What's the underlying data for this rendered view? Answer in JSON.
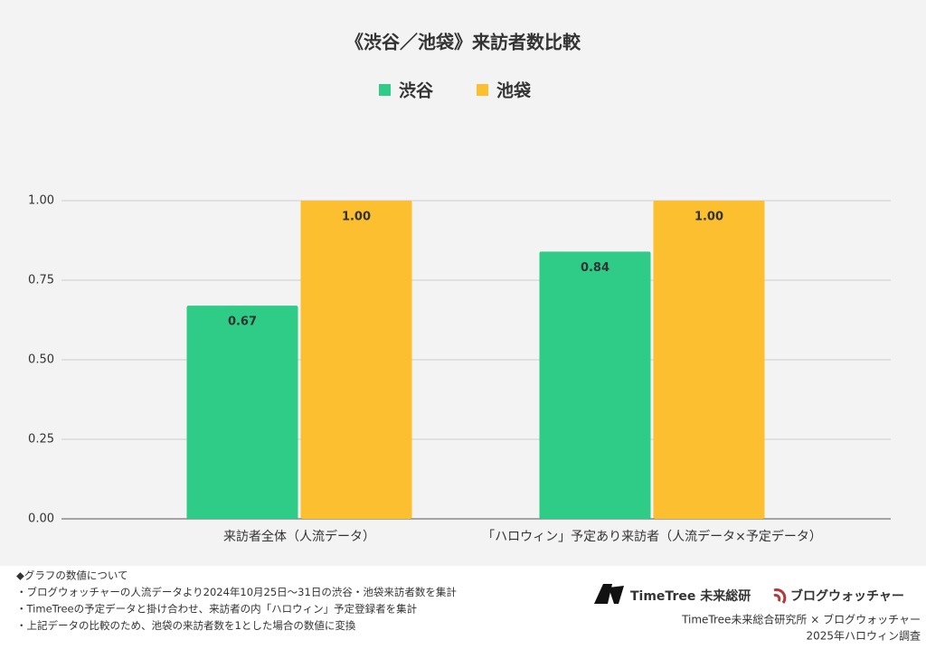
{
  "chart_data": {
    "type": "bar",
    "title": "《渋谷／池袋》来訪者数比較",
    "categories": [
      "来訪者全体（人流データ）",
      "「ハロウィン」予定あり来訪者（人流データ×予定データ）"
    ],
    "series": [
      {
        "name": "渋谷",
        "color": "#2ecc87",
        "values": [
          0.67,
          0.84
        ],
        "value_labels": [
          "0.67",
          "0.84"
        ]
      },
      {
        "name": "池袋",
        "color": "#fbbf2f",
        "values": [
          1,
          1
        ],
        "value_labels": [
          "1.00",
          "1.00"
        ]
      }
    ],
    "ylim": [
      0,
      1
    ],
    "yticks": [
      {
        "value": 0,
        "label": "0.00"
      },
      {
        "value": 0.25,
        "label": "0.25"
      },
      {
        "value": 0.5,
        "label": "0.50"
      },
      {
        "value": 0.75,
        "label": "0.75"
      },
      {
        "value": 1,
        "label": "1.00"
      }
    ],
    "grid": true,
    "legend": "top"
  },
  "footer": {
    "notes": [
      "◆グラフの数値について",
      "・ブログウォッチャーの人流データより2024年10月25日～31日の渋谷・池袋来訪者数を集計",
      "・TimeTreeの予定データと掛け合わせ、来訪者の内「ハロウィン」予定登録者を集計",
      "・上記データの比較のため、池袋の来訪者数を1とした場合の数値に変換"
    ],
    "logo1": "TimeTree 未来総研",
    "logo2": "ブログウォッチャー",
    "credit": [
      "TimeTree未来総合研究所 × ブログウォッチャー",
      "2025年ハロウィン調査"
    ]
  }
}
